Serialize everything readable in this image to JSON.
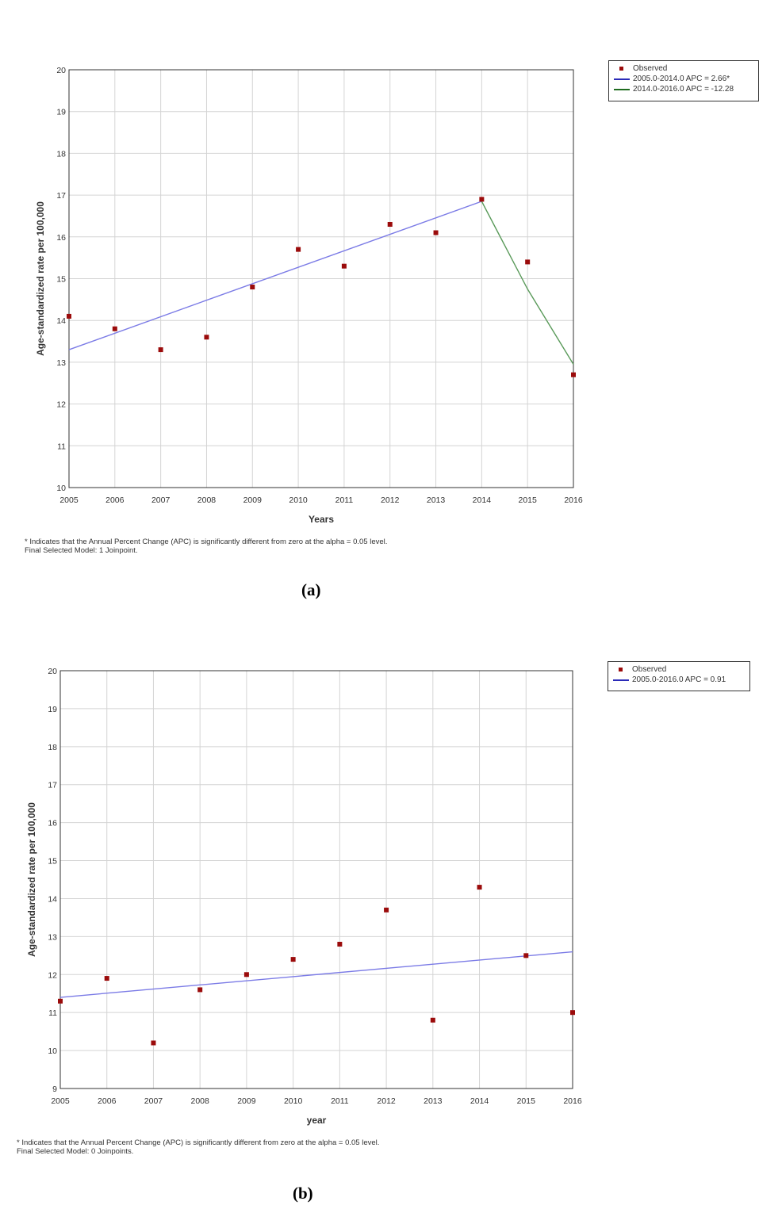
{
  "chart_data": [
    {
      "type": "scatter",
      "panel_label": "(a)",
      "xlabel": "Years",
      "ylabel": "Age-standardized rate per 100,000",
      "xlim": [
        2005,
        2016
      ],
      "ylim": [
        10,
        20
      ],
      "x_ticks": [
        "2005",
        "2006",
        "2007",
        "2008",
        "2009",
        "2010",
        "2011",
        "2012",
        "2013",
        "2014",
        "2015",
        "2016"
      ],
      "y_ticks": [
        "10",
        "11",
        "12",
        "13",
        "14",
        "15",
        "16",
        "17",
        "18",
        "19",
        "20"
      ],
      "grid": true,
      "legend_position": "top-right, outside plot",
      "series": [
        {
          "name": "Observed",
          "kind": "points",
          "color": "#9b0b0b",
          "x": [
            2005,
            2006,
            2007,
            2008,
            2009,
            2010,
            2011,
            2012,
            2013,
            2014,
            2015,
            2016
          ],
          "y": [
            14.1,
            13.8,
            13.3,
            13.6,
            14.8,
            15.7,
            15.3,
            16.3,
            16.1,
            16.9,
            15.4,
            12.7
          ]
        },
        {
          "name": "2005.0-2014.0 APC = 2.66*",
          "kind": "line",
          "color": "#7b7be6",
          "legend_color": "#2b2bb8",
          "x": [
            2005,
            2014
          ],
          "y": [
            13.3,
            16.85
          ]
        },
        {
          "name": "2014.0-2016.0 APC = -12.28",
          "kind": "line",
          "color": "#5a9a5a",
          "legend_color": "#1f6b1f",
          "x": [
            2014,
            2015,
            2016
          ],
          "y": [
            16.85,
            14.75,
            12.95
          ]
        }
      ],
      "footnote_1": "* Indicates that the Annual Percent Change (APC) is significantly different from zero at the alpha = 0.05 level.",
      "footnote_2": "Final Selected Model: 1 Joinpoint."
    },
    {
      "type": "scatter",
      "panel_label": "(b)",
      "xlabel": "year",
      "ylabel": "Age-standardized rate per 100,000",
      "xlim": [
        2005,
        2016
      ],
      "ylim": [
        9,
        20
      ],
      "x_ticks": [
        "2005",
        "2006",
        "2007",
        "2008",
        "2009",
        "2010",
        "2011",
        "2012",
        "2013",
        "2014",
        "2015",
        "2016"
      ],
      "y_ticks": [
        "9",
        "10",
        "11",
        "12",
        "13",
        "14",
        "15",
        "16",
        "17",
        "18",
        "19",
        "20"
      ],
      "grid": true,
      "legend_position": "top-right, outside plot",
      "series": [
        {
          "name": "Observed",
          "kind": "points",
          "color": "#9b0b0b",
          "x": [
            2005,
            2006,
            2007,
            2008,
            2009,
            2010,
            2011,
            2012,
            2013,
            2014,
            2015,
            2016
          ],
          "y": [
            11.3,
            11.9,
            10.2,
            11.6,
            12.0,
            12.4,
            12.8,
            13.7,
            10.8,
            14.3,
            12.5,
            11.0
          ]
        },
        {
          "name": "2005.0-2016.0 APC = 0.91",
          "kind": "line",
          "color": "#7b7be6",
          "legend_color": "#2b2bb8",
          "x": [
            2005,
            2016
          ],
          "y": [
            11.4,
            12.6
          ]
        }
      ],
      "footnote_1": "* Indicates that the Annual Percent Change (APC) is significantly different from zero at the alpha = 0.05 level.",
      "footnote_2": "Final Selected Model: 0 Joinpoints."
    }
  ]
}
